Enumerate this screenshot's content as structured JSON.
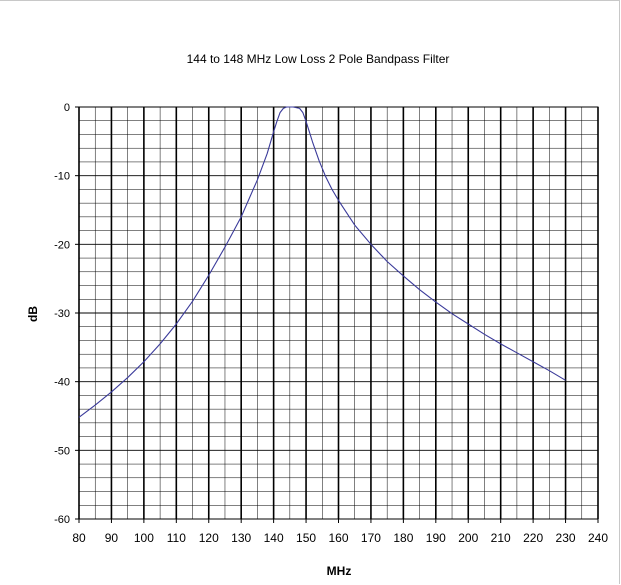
{
  "chart_data": {
    "type": "line",
    "title": "144 to 148 MHz Low Loss 2 Pole Bandpass Filter",
    "xlabel": "MHz",
    "ylabel": "dB",
    "xlim": [
      80,
      240
    ],
    "ylim": [
      -60,
      0
    ],
    "x_major_step": 10,
    "x_minor_step": 5,
    "y_major_step": 10,
    "y_minor_step": 2,
    "grid": true,
    "x_ticks": [
      "80",
      "90",
      "100",
      "110",
      "120",
      "130",
      "140",
      "150",
      "160",
      "170",
      "180",
      "190",
      "200",
      "210",
      "220",
      "230",
      "240"
    ],
    "y_ticks": [
      "0",
      "-10",
      "-20",
      "-30",
      "-40",
      "-50",
      "-60"
    ],
    "series": [
      {
        "color": "#3a3a9a",
        "x": [
          80,
          85,
          90,
          95,
          100,
          105,
          110,
          115,
          120,
          125,
          130,
          135,
          138,
          140,
          141,
          142,
          143,
          144,
          146,
          148,
          149,
          150,
          151,
          152,
          154,
          156,
          158,
          160,
          165,
          170,
          175,
          180,
          185,
          190,
          195,
          200,
          205,
          210,
          215,
          220,
          225,
          230
        ],
        "y": [
          -45.2,
          -43.4,
          -41.5,
          -39.4,
          -37.1,
          -34.5,
          -31.6,
          -28.3,
          -24.5,
          -20.4,
          -16.0,
          -10.6,
          -6.8,
          -3.6,
          -2.1,
          -0.8,
          -0.2,
          0,
          0,
          -0.2,
          -0.8,
          -2.1,
          -3.6,
          -5.1,
          -7.8,
          -10.1,
          -12.0,
          -13.6,
          -17.2,
          -20.0,
          -22.5,
          -24.6,
          -26.6,
          -28.4,
          -30.1,
          -31.6,
          -33.1,
          -34.5,
          -35.8,
          -37.1,
          -38.4,
          -39.8
        ]
      }
    ]
  }
}
